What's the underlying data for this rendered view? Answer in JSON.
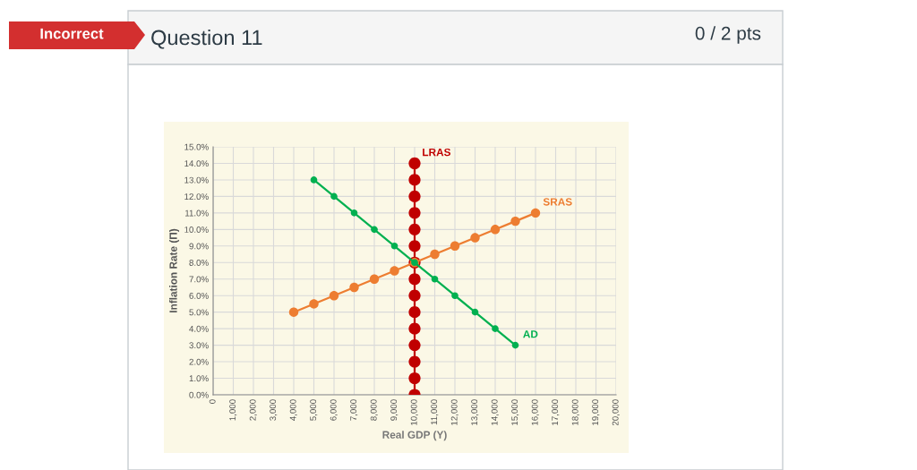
{
  "chart_data": {
    "type": "line",
    "xlabel": "Real GDP (Y)",
    "ylabel": "Inflation Rate (Π)",
    "annotations": [
      "Incorrect",
      "Question 11",
      "0 / 2 pts"
    ],
    "series": [
      {
        "name": "LRAS",
        "color": "#c00000",
        "x": [
          10000,
          10000,
          10000,
          10000,
          10000,
          10000,
          10000,
          10000,
          10000,
          10000,
          10000,
          10000,
          10000,
          10000,
          10000
        ],
        "values": [
          0,
          1,
          2,
          3,
          4,
          5,
          6,
          7,
          8,
          9,
          10,
          11,
          12,
          13,
          14
        ]
      },
      {
        "name": "SRAS",
        "color": "#ed7d31",
        "x": [
          4000,
          5000,
          6000,
          7000,
          8000,
          9000,
          10000,
          11000,
          12000,
          13000,
          14000,
          15000,
          16000
        ],
        "values": [
          5,
          5.5,
          6,
          6.5,
          7,
          7.5,
          8,
          8.5,
          9,
          9.5,
          10,
          10.5,
          11
        ]
      },
      {
        "name": "AD",
        "color": "#00b050",
        "x": [
          5000,
          6000,
          7000,
          8000,
          9000,
          10000,
          11000,
          12000,
          13000,
          14000,
          15000
        ],
        "values": [
          13,
          12,
          11,
          10,
          9,
          8,
          7,
          6,
          5,
          4,
          3
        ]
      }
    ],
    "xlim": [
      0,
      20000
    ],
    "xticks": [
      0,
      {
        "value": 1000,
        "label": "1,000"
      },
      {
        "value": 2000,
        "label": "2,000"
      },
      {
        "value": 3000,
        "label": "3,000"
      },
      {
        "value": 4000,
        "label": "4,000"
      },
      {
        "value": 5000,
        "label": "5,000"
      },
      {
        "value": 6000,
        "label": "6,000"
      },
      {
        "value": 7000,
        "label": "7,000"
      },
      {
        "value": 8000,
        "label": "8,000"
      },
      {
        "value": 9000,
        "label": "9,000"
      },
      {
        "value": 10000,
        "label": "10,000"
      },
      {
        "value": 11000,
        "label": "11,000"
      },
      {
        "value": 12000,
        "label": "12,000"
      },
      {
        "value": 13000,
        "label": "13,000"
      },
      {
        "value": 14000,
        "label": "14,000"
      },
      {
        "value": 15000,
        "label": "15,000"
      },
      {
        "value": 16000,
        "label": "16,000"
      },
      {
        "value": 17000,
        "label": "17,000"
      },
      {
        "value": 18000,
        "label": "18,000"
      },
      {
        "value": 19000,
        "label": "19,000"
      },
      {
        "value": 20000,
        "label": "20,000"
      }
    ],
    "ylim": [
      0,
      15
    ],
    "yticks": [
      {
        "value": 0,
        "label": "0.0%"
      },
      {
        "value": 1,
        "label": "1.0%"
      },
      {
        "value": 2,
        "label": "2.0%"
      },
      {
        "value": 3,
        "label": "3.0%"
      },
      {
        "value": 4,
        "label": "4.0%"
      },
      {
        "value": 5,
        "label": "5.0%"
      },
      {
        "value": 6,
        "label": "6.0%"
      },
      {
        "value": 7,
        "label": "7.0%"
      },
      {
        "value": 8,
        "label": "8.0%"
      },
      {
        "value": 9,
        "label": "9.0%"
      },
      {
        "value": 10,
        "label": "10.0%"
      },
      {
        "value": 11,
        "label": "11.0%"
      },
      {
        "value": 12,
        "label": "12.0%"
      },
      {
        "value": 13,
        "label": "13.0%"
      },
      {
        "value": 14,
        "label": "14.0%"
      },
      {
        "value": 15,
        "label": "15.0%"
      }
    ],
    "grid": true,
    "marker": "circle",
    "line_style": "solid"
  }
}
